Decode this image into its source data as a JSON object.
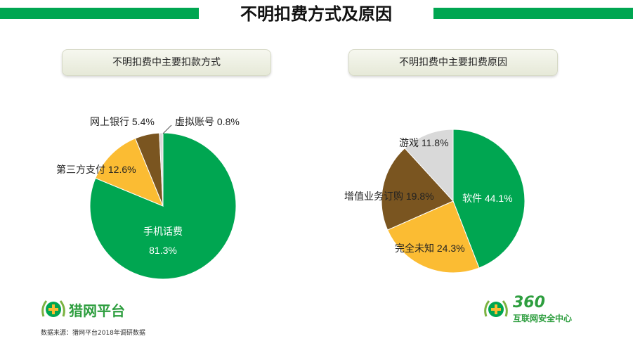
{
  "page": {
    "title": "不明扣费方式及原因"
  },
  "panels": {
    "left_title": "不明扣费中主要扣款方式",
    "right_title": "不明扣费中主要扣费原因"
  },
  "footer": {
    "source": "数据来源：猎网平台2018年调研数据",
    "logo_left_text": "猎网平台",
    "logo_right_number": "360",
    "logo_right_text": "互联网安全中心"
  },
  "chart_data": [
    {
      "type": "pie",
      "title": "不明扣费中主要扣款方式",
      "slices": [
        {
          "label": "手机话费",
          "value": 81.3,
          "display": "81.3%",
          "color": "#00a651"
        },
        {
          "label": "第三方支付",
          "value": 12.6,
          "display": "12.6%",
          "color": "#fbbc33"
        },
        {
          "label": "网上银行",
          "value": 5.4,
          "display": "5.4%",
          "color": "#7a5520"
        },
        {
          "label": "虚拟账号",
          "value": 0.8,
          "display": "0.8%",
          "color": "#d9d9d9"
        }
      ]
    },
    {
      "type": "pie",
      "title": "不明扣费中主要扣费原因",
      "slices": [
        {
          "label": "软件",
          "value": 44.1,
          "display": "44.1%",
          "color": "#00a651"
        },
        {
          "label": "完全未知",
          "value": 24.3,
          "display": "24.3%",
          "color": "#fbbc33"
        },
        {
          "label": "增值业务订购",
          "value": 19.8,
          "display": "19.8%",
          "color": "#7a5520"
        },
        {
          "label": "游戏",
          "value": 11.8,
          "display": "11.8%",
          "color": "#d9d9d9"
        }
      ]
    }
  ]
}
